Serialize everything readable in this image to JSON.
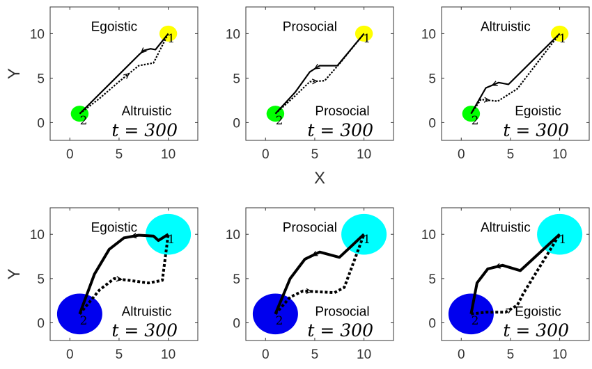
{
  "chart_data": [
    {
      "type": "line",
      "xlabel": "",
      "ylabel": "Y",
      "xlim": [
        -2,
        13
      ],
      "ylim": [
        -2,
        13
      ],
      "xticks": [
        "0",
        "5",
        "10"
      ],
      "yticks": [
        "0",
        "5",
        "10"
      ],
      "grid": false,
      "time_label": "t = 300",
      "agents": [
        {
          "label": "1",
          "x": 10,
          "y": 10,
          "radius": 0.9,
          "color": "#ffff00",
          "role": "Egoistic"
        },
        {
          "label": "2",
          "x": 1,
          "y": 1,
          "radius": 0.9,
          "color": "#00ff00",
          "role": "Altruistic"
        }
      ],
      "series": [
        {
          "style": "solid",
          "width": 2.2,
          "x": [
            1,
            3,
            5,
            7,
            7.5,
            8.2,
            8.7,
            10
          ],
          "y": [
            1,
            3.2,
            5.4,
            7.6,
            8.1,
            8.3,
            8.2,
            10
          ]
        },
        {
          "style": "dotted",
          "width": 2.2,
          "x": [
            1,
            3,
            5,
            7,
            8.5,
            10
          ],
          "y": [
            1,
            2.7,
            4.6,
            6.4,
            6.7,
            10
          ]
        }
      ]
    },
    {
      "type": "line",
      "xlabel": "X",
      "ylabel": "",
      "xlim": [
        -2,
        13
      ],
      "ylim": [
        -2,
        13
      ],
      "xticks": [
        "0",
        "5",
        "10"
      ],
      "yticks": [
        "0",
        "5",
        "10"
      ],
      "grid": false,
      "time_label": "t = 300",
      "agents": [
        {
          "label": "1",
          "x": 10,
          "y": 10,
          "radius": 0.9,
          "color": "#ffff00",
          "role": "Prosocial"
        },
        {
          "label": "2",
          "x": 1,
          "y": 1,
          "radius": 0.9,
          "color": "#00ff00",
          "role": "Prosocial"
        }
      ],
      "series": [
        {
          "style": "solid",
          "width": 2.2,
          "x": [
            1,
            3,
            4.5,
            5.5,
            6.5,
            7.3,
            10
          ],
          "y": [
            1,
            3.4,
            5.7,
            6.4,
            6.4,
            6.4,
            10
          ]
        },
        {
          "style": "dotted",
          "width": 2.2,
          "x": [
            1,
            3,
            4.5,
            6,
            7.5,
            10
          ],
          "y": [
            1,
            3.0,
            4.6,
            4.7,
            6.6,
            10
          ]
        }
      ]
    },
    {
      "type": "line",
      "xlabel": "",
      "ylabel": "",
      "xlim": [
        -2,
        13
      ],
      "ylim": [
        -2,
        13
      ],
      "xticks": [
        "0",
        "5",
        "10"
      ],
      "yticks": [
        "0",
        "5",
        "10"
      ],
      "grid": false,
      "time_label": "t = 300",
      "agents": [
        {
          "label": "1",
          "x": 10,
          "y": 10,
          "radius": 0.9,
          "color": "#ffff00",
          "role": "Altruistic"
        },
        {
          "label": "2",
          "x": 1,
          "y": 1,
          "radius": 0.9,
          "color": "#00ff00",
          "role": "Egoistic"
        }
      ],
      "series": [
        {
          "style": "solid",
          "width": 2.2,
          "x": [
            1,
            2.5,
            3.8,
            4.8,
            10
          ],
          "y": [
            1,
            3.9,
            4.5,
            4.3,
            10
          ]
        },
        {
          "style": "dotted",
          "width": 2.2,
          "x": [
            1,
            2,
            3.7,
            5.7,
            10
          ],
          "y": [
            1,
            2.6,
            2.4,
            3.8,
            10
          ]
        }
      ]
    },
    {
      "type": "line",
      "xlabel": "",
      "ylabel": "Y",
      "xlim": [
        -2,
        13
      ],
      "ylim": [
        -2,
        13
      ],
      "xticks": [
        "0",
        "5",
        "10"
      ],
      "yticks": [
        "0",
        "5",
        "10"
      ],
      "grid": false,
      "time_label": "t = 300",
      "agents": [
        {
          "label": "1",
          "x": 10,
          "y": 10,
          "radius": 2.3,
          "color": "#00ffff",
          "role": "Egoistic"
        },
        {
          "label": "2",
          "x": 1,
          "y": 1,
          "radius": 2.3,
          "color": "#0000ee",
          "role": "Altruistic"
        }
      ],
      "series": [
        {
          "style": "solid",
          "width": 4,
          "x": [
            1,
            2.5,
            4,
            5.5,
            7,
            8.5,
            9,
            10
          ],
          "y": [
            1,
            5.5,
            8.3,
            9.6,
            9.9,
            9.8,
            9.3,
            10
          ]
        },
        {
          "style": "dotted",
          "width": 4,
          "x": [
            1,
            3,
            4.5,
            6,
            8,
            9.4,
            10
          ],
          "y": [
            1,
            3.7,
            5.0,
            4.8,
            4.5,
            4.8,
            10
          ]
        }
      ]
    },
    {
      "type": "line",
      "xlabel": "",
      "ylabel": "",
      "xlim": [
        -2,
        13
      ],
      "ylim": [
        -2,
        13
      ],
      "xticks": [
        "0",
        "5",
        "10"
      ],
      "yticks": [
        "0",
        "5",
        "10"
      ],
      "grid": false,
      "time_label": "t = 300",
      "agents": [
        {
          "label": "1",
          "x": 10,
          "y": 10,
          "radius": 2.3,
          "color": "#00ffff",
          "role": "Prosocial"
        },
        {
          "label": "2",
          "x": 1,
          "y": 1,
          "radius": 2.3,
          "color": "#0000ee",
          "role": "Prosocial"
        }
      ],
      "series": [
        {
          "style": "solid",
          "width": 4,
          "x": [
            1,
            2.5,
            4,
            5.5,
            7.5,
            10
          ],
          "y": [
            1,
            5.0,
            7.2,
            8.0,
            7.4,
            10
          ]
        },
        {
          "style": "dotted",
          "width": 4,
          "x": [
            1,
            2.5,
            3.8,
            5.5,
            7,
            8,
            10
          ],
          "y": [
            1,
            2.9,
            3.6,
            3.5,
            3.4,
            4.0,
            10
          ]
        }
      ]
    },
    {
      "type": "line",
      "xlabel": "",
      "ylabel": "",
      "xlim": [
        -2,
        13
      ],
      "ylim": [
        -2,
        13
      ],
      "xticks": [
        "0",
        "5",
        "10"
      ],
      "yticks": [
        "0",
        "5",
        "10"
      ],
      "grid": false,
      "time_label": "t = 300",
      "agents": [
        {
          "label": "1",
          "x": 10,
          "y": 10,
          "radius": 2.3,
          "color": "#00ffff",
          "role": "Altruistic"
        },
        {
          "label": "2",
          "x": 1,
          "y": 1,
          "radius": 2.3,
          "color": "#0000ee",
          "role": "Egoistic"
        }
      ],
      "series": [
        {
          "style": "solid",
          "width": 4,
          "x": [
            1,
            1.6,
            2.7,
            4.2,
            6,
            10
          ],
          "y": [
            1,
            4.5,
            6.1,
            6.5,
            5.9,
            10
          ]
        },
        {
          "style": "dotted",
          "width": 4,
          "x": [
            1,
            2.5,
            4.5,
            5.7,
            6.3,
            10
          ],
          "y": [
            1,
            1.2,
            1.2,
            2.0,
            3.3,
            10
          ]
        }
      ]
    }
  ]
}
